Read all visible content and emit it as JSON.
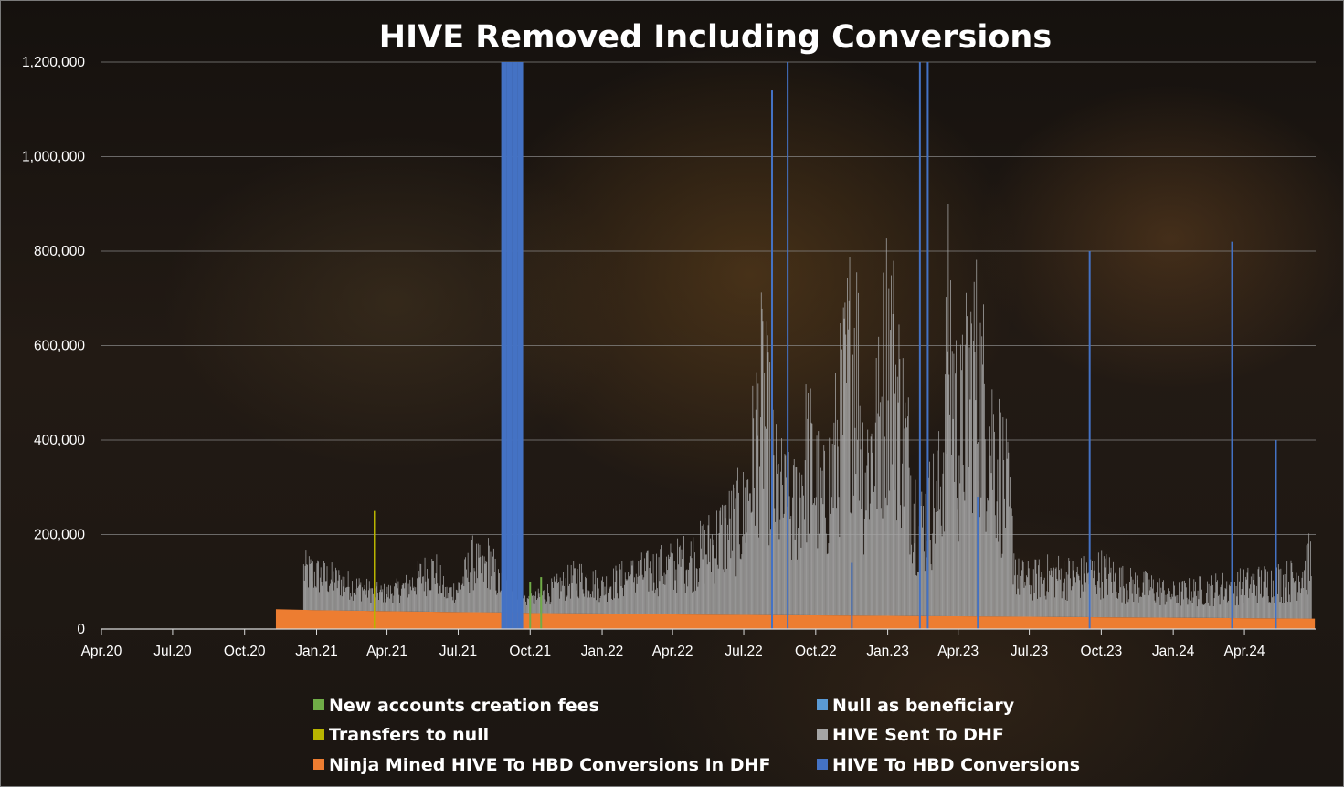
{
  "chart_data": {
    "type": "bar",
    "title": "HIVE Removed Including Conversions",
    "xlabel": "",
    "ylabel": "",
    "ylim": [
      0,
      1200000
    ],
    "yticks": [
      "0",
      "200,000",
      "400,000",
      "600,000",
      "800,000",
      "1,000,000",
      "1,200,000"
    ],
    "ytick_values": [
      0,
      200000,
      400000,
      600000,
      800000,
      1000000,
      1200000
    ],
    "xrange": [
      "2020-04-01",
      "2024-07-01"
    ],
    "xticks": [
      "Apr.20",
      "Jul.20",
      "Oct.20",
      "Jan.21",
      "Apr.21",
      "Jul.21",
      "Oct.21",
      "Jan.22",
      "Apr.22",
      "Jul.22",
      "Oct.22",
      "Jan.23",
      "Apr.23",
      "Jul.23",
      "Oct.23",
      "Jan.24",
      "Apr.24"
    ],
    "xtick_dates": [
      "2020-04-01",
      "2020-07-01",
      "2020-10-01",
      "2021-01-01",
      "2021-04-01",
      "2021-07-01",
      "2021-10-01",
      "2022-01-01",
      "2022-04-01",
      "2022-07-01",
      "2022-10-01",
      "2023-01-01",
      "2023-04-01",
      "2023-07-01",
      "2023-10-01",
      "2024-01-01",
      "2024-04-01"
    ],
    "grid": true,
    "legend_position": "bottom",
    "colors": {
      "new_accounts": "#70ad47",
      "null_beneficiary": "#5b9bd5",
      "transfers_null": "#b8b400",
      "hive_sent_dhf": "#a5a5a5",
      "ninja_conversions": "#ed7d31",
      "hive_hbd_conversions": "#4472c4"
    },
    "series": [
      {
        "name": "Ninja Mined HIVE To HBD Conversions In DHF",
        "key": "ninja_conversions",
        "points": [
          [
            "2020-11-10",
            42000
          ],
          [
            "2021-01-01",
            40000
          ],
          [
            "2021-04-01",
            38000
          ],
          [
            "2021-07-01",
            36000
          ],
          [
            "2021-09-15",
            35000
          ],
          [
            "2021-10-01",
            34000
          ],
          [
            "2022-01-01",
            33000
          ],
          [
            "2022-04-01",
            31000
          ],
          [
            "2022-07-01",
            30000
          ],
          [
            "2022-10-01",
            29000
          ],
          [
            "2023-01-01",
            28000
          ],
          [
            "2023-04-01",
            27000
          ],
          [
            "2023-07-01",
            26000
          ],
          [
            "2023-10-01",
            25000
          ],
          [
            "2024-01-01",
            24000
          ],
          [
            "2024-04-01",
            23000
          ],
          [
            "2024-06-30",
            22000
          ]
        ]
      },
      {
        "name": "HIVE Sent To DHF",
        "key": "hive_sent_dhf",
        "points": [
          [
            "2020-12-15",
            130000
          ],
          [
            "2021-03-20",
            60000
          ],
          [
            "2021-04-01",
            60000
          ],
          [
            "2021-04-20",
            75000
          ],
          [
            "2021-05-01",
            90000
          ],
          [
            "2021-05-15",
            120000
          ],
          [
            "2021-06-01",
            140000
          ],
          [
            "2021-06-15",
            60000
          ],
          [
            "2021-07-01",
            80000
          ],
          [
            "2021-07-20",
            170000
          ],
          [
            "2021-08-01",
            130000
          ],
          [
            "2021-08-10",
            180000
          ],
          [
            "2021-08-20",
            100000
          ],
          [
            "2021-10-01",
            40000
          ],
          [
            "2021-11-01",
            80000
          ],
          [
            "2021-12-01",
            120000
          ],
          [
            "2022-01-01",
            90000
          ],
          [
            "2022-02-01",
            120000
          ],
          [
            "2022-03-01",
            140000
          ],
          [
            "2022-04-01",
            160000
          ],
          [
            "2022-05-01",
            190000
          ],
          [
            "2022-06-01",
            260000
          ],
          [
            "2022-07-01",
            330000
          ],
          [
            "2022-07-25",
            720000
          ],
          [
            "2022-08-10",
            420000
          ],
          [
            "2022-09-01",
            330000
          ],
          [
            "2022-09-20",
            540000
          ],
          [
            "2022-10-10",
            360000
          ],
          [
            "2022-10-25",
            520000
          ],
          [
            "2022-11-20",
            940000
          ],
          [
            "2022-12-01",
            480000
          ],
          [
            "2022-12-20",
            620000
          ],
          [
            "2023-01-01",
            930000
          ],
          [
            "2023-01-15",
            700000
          ],
          [
            "2023-02-10",
            280000
          ],
          [
            "2023-02-25",
            360000
          ],
          [
            "2023-03-10",
            420000
          ],
          [
            "2023-03-20",
            940000
          ],
          [
            "2023-04-01",
            560000
          ],
          [
            "2023-04-20",
            840000
          ],
          [
            "2023-05-10",
            630000
          ],
          [
            "2023-06-01",
            420000
          ],
          [
            "2023-06-15",
            130000
          ],
          [
            "2023-07-01",
            120000
          ],
          [
            "2023-08-01",
            140000
          ],
          [
            "2023-09-01",
            130000
          ],
          [
            "2023-10-01",
            150000
          ],
          [
            "2023-11-01",
            110000
          ],
          [
            "2023-12-01",
            100000
          ],
          [
            "2024-01-01",
            80000
          ],
          [
            "2024-02-01",
            90000
          ],
          [
            "2024-03-01",
            100000
          ],
          [
            "2024-04-01",
            110000
          ],
          [
            "2024-05-01",
            120000
          ],
          [
            "2024-06-01",
            130000
          ],
          [
            "2024-06-25",
            190000
          ]
        ]
      },
      {
        "name": "HIVE To HBD Conversions",
        "key": "hive_hbd_conversions",
        "points": [
          [
            "2021-08-25",
            1200000
          ],
          [
            "2021-09-01",
            1200000
          ],
          [
            "2021-09-08",
            1200000
          ],
          [
            "2021-09-15",
            1200000
          ],
          [
            "2022-08-05",
            1140000
          ],
          [
            "2022-08-25",
            1200000
          ],
          [
            "2022-11-15",
            140000
          ],
          [
            "2023-02-10",
            1200000
          ],
          [
            "2023-02-20",
            1200000
          ],
          [
            "2023-04-25",
            280000
          ],
          [
            "2023-09-15",
            800000
          ],
          [
            "2024-03-15",
            820000
          ],
          [
            "2024-05-10",
            400000
          ]
        ]
      },
      {
        "name": "New accounts creation fees",
        "key": "new_accounts",
        "points": [
          [
            "2021-09-20",
            90000
          ],
          [
            "2021-10-01",
            100000
          ],
          [
            "2021-10-15",
            110000
          ]
        ]
      },
      {
        "name": "Transfers to null",
        "key": "transfers_null",
        "points": [
          [
            "2021-03-15",
            250000
          ]
        ]
      },
      {
        "name": "Null as beneficiary",
        "key": "null_beneficiary",
        "points": []
      }
    ]
  },
  "legend": [
    {
      "label": "New accounts creation fees",
      "key": "new_accounts"
    },
    {
      "label": "Null as beneficiary",
      "key": "null_beneficiary"
    },
    {
      "label": "Transfers to null",
      "key": "transfers_null"
    },
    {
      "label": "HIVE Sent To DHF",
      "key": "hive_sent_dhf"
    },
    {
      "label": "Ninja Mined HIVE To HBD Conversions In DHF",
      "key": "ninja_conversions"
    },
    {
      "label": "HIVE To HBD Conversions",
      "key": "hive_hbd_conversions"
    }
  ]
}
